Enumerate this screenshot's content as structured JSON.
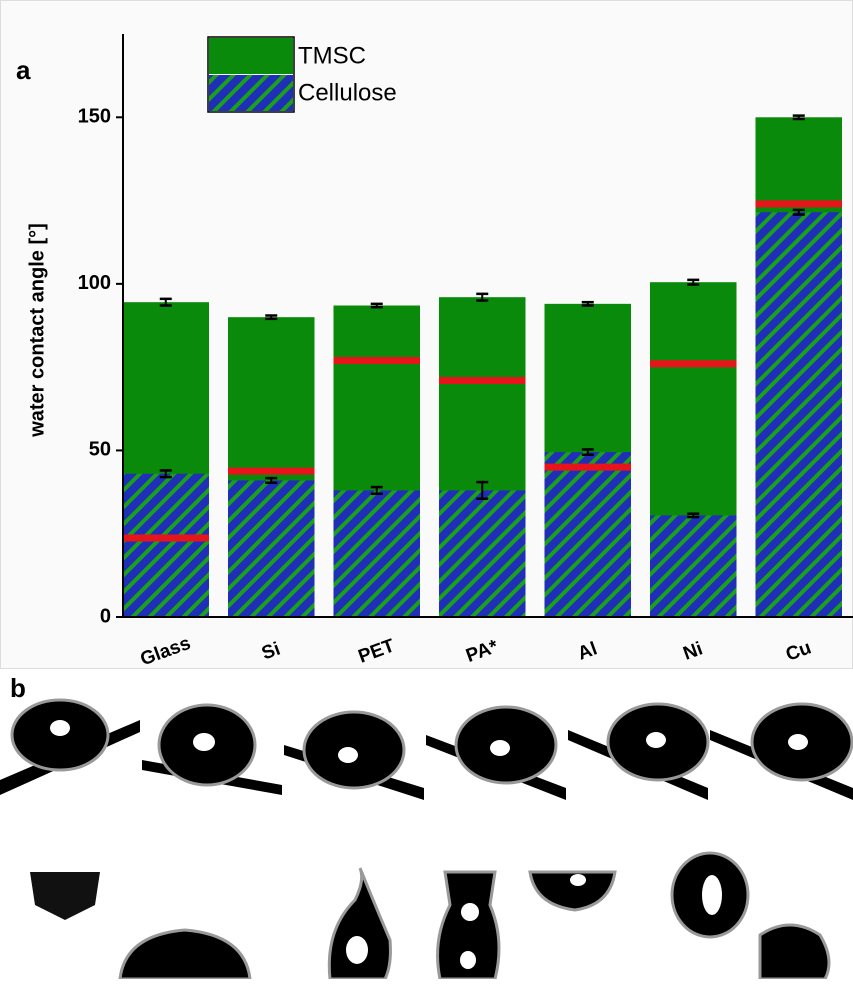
{
  "panel_a_label": "a",
  "panel_b_label": "b",
  "chart_data": {
    "type": "bar",
    "y_label": "water contact angle [°]",
    "categories": [
      "Glass",
      "Si",
      "PET",
      "PA*",
      "Al",
      "Ni",
      "Cu"
    ],
    "series": [
      {
        "name": "TMSC",
        "color": "#0a8a0a",
        "values": [
          94.5,
          90,
          93.5,
          96,
          94,
          100.5,
          150
        ],
        "errors": [
          1,
          0.5,
          0.5,
          1,
          0.5,
          0.7,
          0.5
        ]
      },
      {
        "name": "Cellulose",
        "color": "#1f2fb8",
        "hatch_color": "#1aa01a",
        "values": [
          43,
          41,
          38,
          38,
          49.5,
          30.5,
          121.5
        ],
        "errors": [
          1,
          0.7,
          1,
          2.5,
          0.8,
          0.5,
          0.7
        ]
      }
    ],
    "markers": {
      "color": "#e8141c",
      "values": [
        23.7,
        43.8,
        77,
        71,
        45,
        76,
        124
      ]
    },
    "ylim": [
      0,
      175
    ],
    "yticks": [
      0,
      50,
      100,
      150
    ],
    "legend": "top-left"
  }
}
